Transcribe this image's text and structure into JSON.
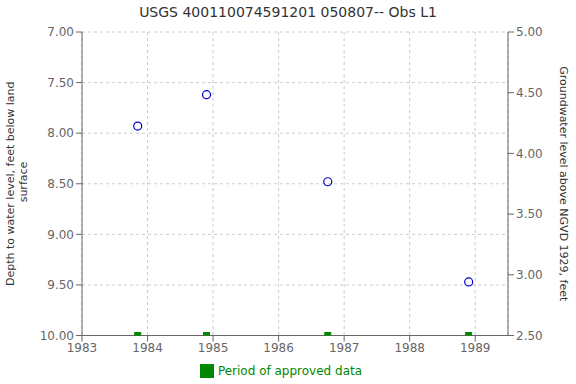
{
  "chart_data": {
    "type": "scatter",
    "title": "USGS 400110074591201 050807-- Obs L1",
    "y_label": "Depth to water level, feet below land\n surface",
    "y2_label": "Groundwater level above NGVD 1929, feet",
    "x": [
      1983.85,
      1984.9,
      1986.75,
      1988.9
    ],
    "series": [
      {
        "values": [
          7.93,
          7.62,
          8.48,
          9.47
        ],
        "color": "#0000cc",
        "marker": "circle"
      },
      {
        "name": "Period of approved data",
        "values": [
          10.0,
          10.0,
          10.0,
          10.0
        ],
        "color": "#008800",
        "marker": "square"
      }
    ],
    "xlim": [
      1983,
      1989.5
    ],
    "xticks": [
      1983,
      1984,
      1985,
      1986,
      1987,
      1988,
      1989
    ],
    "ylim": [
      10.0,
      7.0
    ],
    "yticks": [
      {
        "value": 7.0,
        "label": "7.00"
      },
      {
        "value": 7.5,
        "label": "7.50"
      },
      {
        "value": 8.0,
        "label": "8.00"
      },
      {
        "value": 8.5,
        "label": "8.50"
      },
      {
        "value": 9.0,
        "label": "9.00"
      },
      {
        "value": 9.5,
        "label": "9.50"
      },
      {
        "value": 10.0,
        "label": "10.00"
      }
    ],
    "y2lim": [
      2.5,
      5.0
    ],
    "y2ticks": [
      {
        "value": 2.5,
        "label": "2.50"
      },
      {
        "value": 3.0,
        "label": "3.00"
      },
      {
        "value": 3.5,
        "label": "3.50"
      },
      {
        "value": 4.0,
        "label": "4.00"
      },
      {
        "value": 4.5,
        "label": "4.50"
      },
      {
        "value": 5.0,
        "label": "5.00"
      }
    ],
    "grid": true
  }
}
